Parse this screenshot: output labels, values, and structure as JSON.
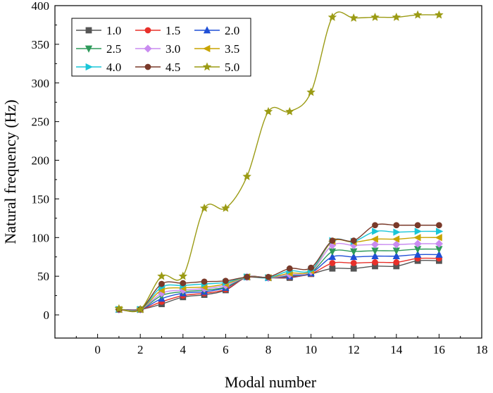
{
  "chart_data": {
    "type": "line",
    "xlabel": "Modal number",
    "ylabel": "Natural frequency (Hz)",
    "xlim": [
      -2,
      18
    ],
    "ylim": [
      -30,
      400
    ],
    "xticks": [
      0,
      2,
      4,
      6,
      8,
      10,
      12,
      14,
      16,
      18
    ],
    "yticks": [
      0,
      50,
      100,
      150,
      200,
      250,
      300,
      350,
      400
    ],
    "grid": false,
    "legend_position": "top-left",
    "x": [
      1,
      2,
      3,
      4,
      5,
      6,
      7,
      8,
      9,
      10,
      11,
      12,
      13,
      14,
      15,
      16
    ],
    "series": [
      {
        "name": "1.0",
        "color": "#555555",
        "marker": "square",
        "values": [
          7,
          7,
          14,
          23,
          26,
          32,
          49,
          48,
          48,
          53,
          60,
          60,
          63,
          63,
          70,
          70
        ]
      },
      {
        "name": "1.5",
        "color": "#e8302a",
        "marker": "circle",
        "values": [
          7,
          7,
          17,
          25,
          28,
          33,
          49,
          48,
          49,
          53,
          67,
          67,
          68,
          68,
          73,
          73
        ]
      },
      {
        "name": "2.0",
        "color": "#1f4fd6",
        "marker": "triangle-up",
        "values": [
          7,
          7,
          21,
          28,
          30,
          35,
          49,
          48,
          50,
          54,
          75,
          75,
          76,
          76,
          78,
          78
        ]
      },
      {
        "name": "2.5",
        "color": "#2e9a5a",
        "marker": "triangle-down",
        "values": [
          7,
          7,
          25,
          30,
          32,
          36,
          49,
          48,
          51,
          55,
          82,
          82,
          83,
          83,
          85,
          85
        ]
      },
      {
        "name": "3.0",
        "color": "#c98bf0",
        "marker": "diamond",
        "values": [
          7,
          7,
          28,
          32,
          34,
          38,
          49,
          48,
          52,
          56,
          90,
          90,
          91,
          91,
          92,
          92
        ]
      },
      {
        "name": "3.5",
        "color": "#c8a400",
        "marker": "triangle-left",
        "values": [
          7,
          7,
          32,
          35,
          36,
          40,
          49,
          48,
          54,
          57,
          95,
          94,
          98,
          98,
          100,
          100
        ]
      },
      {
        "name": "4.0",
        "color": "#1ac6d8",
        "marker": "triangle-right",
        "values": [
          7,
          7,
          36,
          38,
          40,
          42,
          49,
          48,
          57,
          58,
          96,
          95,
          108,
          107,
          108,
          108
        ]
      },
      {
        "name": "4.5",
        "color": "#7a3a2a",
        "marker": "circle",
        "values": [
          7,
          7,
          40,
          41,
          43,
          44,
          49,
          49,
          60,
          61,
          96,
          96,
          116,
          116,
          116,
          116
        ]
      },
      {
        "name": "5.0",
        "color": "#9b9b14",
        "marker": "star",
        "values": [
          8,
          7,
          50,
          50,
          138,
          138,
          179,
          263,
          263,
          288,
          385,
          384,
          385,
          385,
          388,
          388
        ]
      }
    ]
  }
}
